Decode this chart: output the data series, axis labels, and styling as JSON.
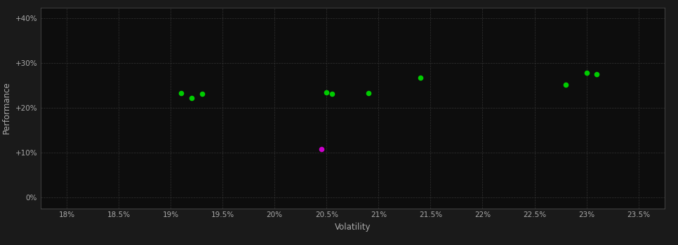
{
  "background_color": "#1a1a1a",
  "plot_bg_color": "#0d0d0d",
  "grid_color": "#3a3a3a",
  "axis_color": "#555555",
  "text_color": "#aaaaaa",
  "xlabel": "Volatility",
  "ylabel": "Performance",
  "xlim": [
    0.1775,
    0.2375
  ],
  "ylim": [
    -0.025,
    0.425
  ],
  "xticks": [
    0.18,
    0.185,
    0.19,
    0.195,
    0.2,
    0.205,
    0.21,
    0.215,
    0.22,
    0.225,
    0.23,
    0.235
  ],
  "yticks": [
    0.0,
    0.1,
    0.2,
    0.3,
    0.4
  ],
  "ytick_labels": [
    "0%",
    "+10%",
    "+20%",
    "+30%",
    "+40%"
  ],
  "xtick_labels": [
    "18%",
    "18.5%",
    "19%",
    "19.5%",
    "20%",
    "20.5%",
    "21%",
    "21.5%",
    "22%",
    "22.5%",
    "23%",
    "23.5%"
  ],
  "green_points": [
    [
      0.191,
      0.233
    ],
    [
      0.193,
      0.232
    ],
    [
      0.192,
      0.222
    ],
    [
      0.205,
      0.235
    ],
    [
      0.2055,
      0.232
    ],
    [
      0.209,
      0.233
    ],
    [
      0.214,
      0.268
    ],
    [
      0.228,
      0.252
    ],
    [
      0.23,
      0.278
    ],
    [
      0.231,
      0.275
    ]
  ],
  "magenta_points": [
    [
      0.2045,
      0.108
    ]
  ],
  "green_color": "#00cc00",
  "magenta_color": "#cc00cc",
  "marker_size": 20
}
